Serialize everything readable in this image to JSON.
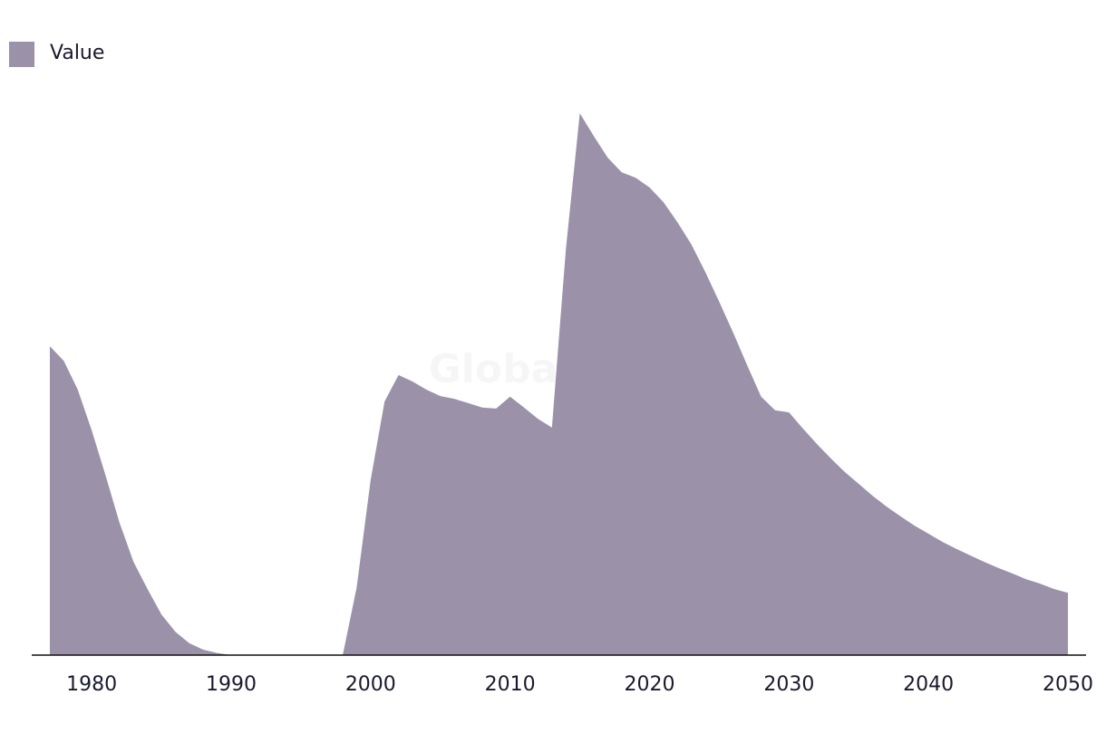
{
  "chart_data": {
    "type": "area",
    "watermark": "GlobalData",
    "x": [
      1977,
      1978,
      1979,
      1980,
      1981,
      1982,
      1983,
      1984,
      1985,
      1986,
      1987,
      1988,
      1989,
      1990,
      1991,
      1992,
      1993,
      1994,
      1995,
      1996,
      1997,
      1998,
      1999,
      2000,
      2001,
      2002,
      2003,
      2004,
      2005,
      2006,
      2007,
      2008,
      2009,
      2010,
      2011,
      2012,
      2013,
      2014,
      2015,
      2016,
      2017,
      2018,
      2019,
      2020,
      2021,
      2022,
      2023,
      2024,
      2025,
      2026,
      2027,
      2028,
      2029,
      2030,
      2031,
      2032,
      2033,
      2034,
      2035,
      2036,
      2037,
      2038,
      2039,
      2040,
      2041,
      2042,
      2043,
      2044,
      2045,
      2046,
      2047,
      2048,
      2049,
      2050
    ],
    "series": [
      {
        "name": "Value",
        "color": "#9b92aa",
        "values": [
          57,
          54.3,
          49,
          41.5,
          33.1,
          24.4,
          17.2,
          12.2,
          7.5,
          4.3,
          2.2,
          1.0,
          0.4,
          0,
          0,
          0,
          0,
          0,
          0,
          0,
          0,
          0,
          12.5,
          32.3,
          46.8,
          51.7,
          50.5,
          49,
          47.8,
          47.3,
          46.5,
          45.7,
          45.5,
          47.7,
          45.7,
          43.6,
          42,
          74.9,
          100,
          95.8,
          91.8,
          89.1,
          88.1,
          86.3,
          83.6,
          79.9,
          75.8,
          70.7,
          65.2,
          59.5,
          53.5,
          47.7,
          45.2,
          44.8,
          41.8,
          38.96,
          36.3,
          33.8,
          31.6,
          29.4,
          27.4,
          25.6,
          23.9,
          22.4,
          20.9,
          19.6,
          18.4,
          17.2,
          16.1,
          15.1,
          14.0,
          13.2,
          12.2,
          11.5
        ]
      }
    ],
    "xlim": [
      1977,
      2050
    ],
    "xticks": [
      1980,
      1990,
      2000,
      2010,
      2020,
      2030,
      2040,
      2050
    ],
    "ylim": [
      0,
      100
    ],
    "legend": "top-left"
  }
}
